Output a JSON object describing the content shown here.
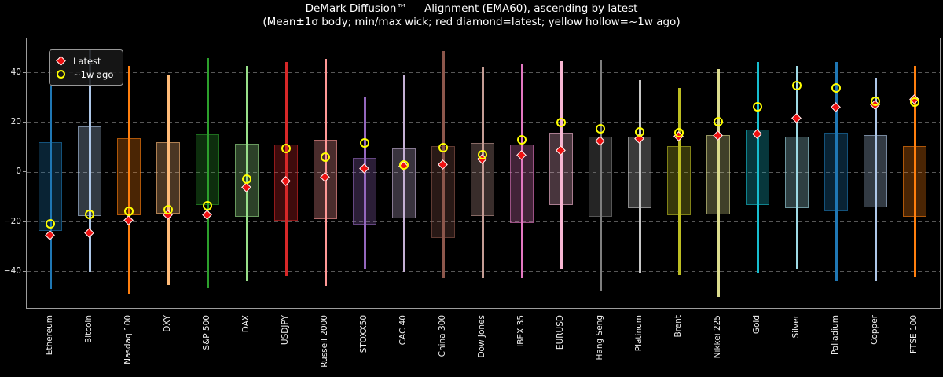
{
  "title": "DeMark Diffusion™ — Alignment (EMA60), ascending by latest",
  "subtitle": "(Mean±1σ body; min/max wick; red diamond=latest; yellow hollow=~1w ago)",
  "legend": {
    "latest_label": "Latest",
    "week_ago_label": "~1w ago",
    "latest_color": "#ee1111",
    "week_ago_color": "#ffff00"
  },
  "chart_data": {
    "type": "candlestick-range",
    "title": "DeMark Diffusion™ — Alignment (EMA60), ascending by latest",
    "subtitle": "(Mean±1σ body; min/max wick; red diamond=latest; yellow hollow=~1w ago)",
    "xlabel": "",
    "ylabel": "",
    "ylim": [
      -55.2,
      53.8
    ],
    "yticks": [
      -40,
      -20,
      0,
      20,
      40
    ],
    "grid": "horizontal-dashed",
    "legend_position": "upper-left",
    "background": "#000000",
    "series": [
      {
        "label": "Ethereum",
        "color": "#1f77b4",
        "wick": [
          -47.0,
          34.7
        ],
        "body": [
          -23.7,
          12.1
        ],
        "latest": -25.5,
        "week_ago": -21.0
      },
      {
        "label": "Bitcoin",
        "color": "#aec7e8",
        "wick": [
          -40.0,
          49.5
        ],
        "body": [
          -17.7,
          18.4
        ],
        "latest": -24.7,
        "week_ago": -17.2
      },
      {
        "label": "Nasdaq 100",
        "color": "#ff7f0e",
        "wick": [
          -48.9,
          42.6
        ],
        "body": [
          -17.4,
          13.7
        ],
        "latest": -19.5,
        "week_ago": -15.8
      },
      {
        "label": "DXY",
        "color": "#ffbb78",
        "wick": [
          -45.3,
          38.9
        ],
        "body": [
          -16.8,
          12.1
        ],
        "latest": -17.4,
        "week_ago": -15.3
      },
      {
        "label": "S&P 500",
        "color": "#2ca02c",
        "wick": [
          -46.8,
          45.8
        ],
        "body": [
          -13.2,
          15.3
        ],
        "latest": -17.2,
        "week_ago": -13.7
      },
      {
        "label": "DAX",
        "color": "#98df8a",
        "wick": [
          -43.7,
          42.6
        ],
        "body": [
          -17.9,
          11.6
        ],
        "latest": -6.1,
        "week_ago": -2.9
      },
      {
        "label": "USDJPY",
        "color": "#d62728",
        "wick": [
          -41.6,
          44.2
        ],
        "body": [
          -19.5,
          11.1
        ],
        "latest": -3.7,
        "week_ago": 9.3
      },
      {
        "label": "Russell 2000",
        "color": "#ff9896",
        "wick": [
          -45.8,
          45.5
        ],
        "body": [
          -18.9,
          13.2
        ],
        "latest": -2.1,
        "week_ago": 5.8
      },
      {
        "label": "STOXX50",
        "color": "#9467bd",
        "wick": [
          -38.7,
          30.3
        ],
        "body": [
          -21.1,
          5.8
        ],
        "latest": 1.4,
        "week_ago": 11.6
      },
      {
        "label": "CAC 40",
        "color": "#c5b0d5",
        "wick": [
          -40.0,
          38.9
        ],
        "body": [
          -18.4,
          9.5
        ],
        "latest": 2.4,
        "week_ago": 2.6
      },
      {
        "label": "China 300",
        "color": "#8c564b",
        "wick": [
          -42.6,
          48.7
        ],
        "body": [
          -26.3,
          10.5
        ],
        "latest": 2.8,
        "week_ago": 9.7
      },
      {
        "label": "Dow Jones",
        "color": "#c49c94",
        "wick": [
          -42.6,
          42.3
        ],
        "body": [
          -17.7,
          11.8
        ],
        "latest": 5.1,
        "week_ago": 7.0
      },
      {
        "label": "IBEX 35",
        "color": "#e377c2",
        "wick": [
          -42.6,
          43.7
        ],
        "body": [
          -20.5,
          11.1
        ],
        "latest": 6.8,
        "week_ago": 12.9
      },
      {
        "label": "EURUSD",
        "color": "#f7b6d2",
        "wick": [
          -38.9,
          44.7
        ],
        "body": [
          -13.2,
          15.8
        ],
        "latest": 8.7,
        "week_ago": 19.7
      },
      {
        "label": "Hang Seng",
        "color": "#7f7f7f",
        "wick": [
          -47.9,
          44.9
        ],
        "body": [
          -17.9,
          14.4
        ],
        "latest": 12.3,
        "week_ago": 17.4
      },
      {
        "label": "Platinum",
        "color": "#c7c7c7",
        "wick": [
          -40.5,
          37.1
        ],
        "body": [
          -14.5,
          14.4
        ],
        "latest": 13.5,
        "week_ago": 16.0
      },
      {
        "label": "Brent",
        "color": "#bcbd22",
        "wick": [
          -41.4,
          34.0
        ],
        "body": [
          -17.4,
          10.5
        ],
        "latest": 14.4,
        "week_ago": 15.8
      },
      {
        "label": "Nikkei 225",
        "color": "#dbdb8d",
        "wick": [
          -50.0,
          41.6
        ],
        "body": [
          -17.0,
          14.9
        ],
        "latest": 14.7,
        "week_ago": 20.0
      },
      {
        "label": "Gold",
        "color": "#17becf",
        "wick": [
          -40.5,
          44.2
        ],
        "body": [
          -13.2,
          17.1
        ],
        "latest": 15.3,
        "week_ago": 26.1
      },
      {
        "label": "Silver",
        "color": "#9edae5",
        "wick": [
          -38.7,
          42.6
        ],
        "body": [
          -14.5,
          14.4
        ],
        "latest": 21.6,
        "week_ago": 34.7
      },
      {
        "label": "Palladium",
        "color": "#1f77b4",
        "wick": [
          -43.7,
          44.2
        ],
        "body": [
          -15.6,
          15.8
        ],
        "latest": 26.1,
        "week_ago": 33.7
      },
      {
        "label": "Copper",
        "color": "#aec7e8",
        "wick": [
          -43.7,
          37.9
        ],
        "body": [
          -14.2,
          14.9
        ],
        "latest": 26.8,
        "week_ago": 28.2
      },
      {
        "label": "FTSE 100",
        "color": "#ff7f0e",
        "wick": [
          -42.1,
          42.6
        ],
        "body": [
          -17.9,
          10.5
        ],
        "latest": 29.2,
        "week_ago": 27.9
      }
    ]
  }
}
